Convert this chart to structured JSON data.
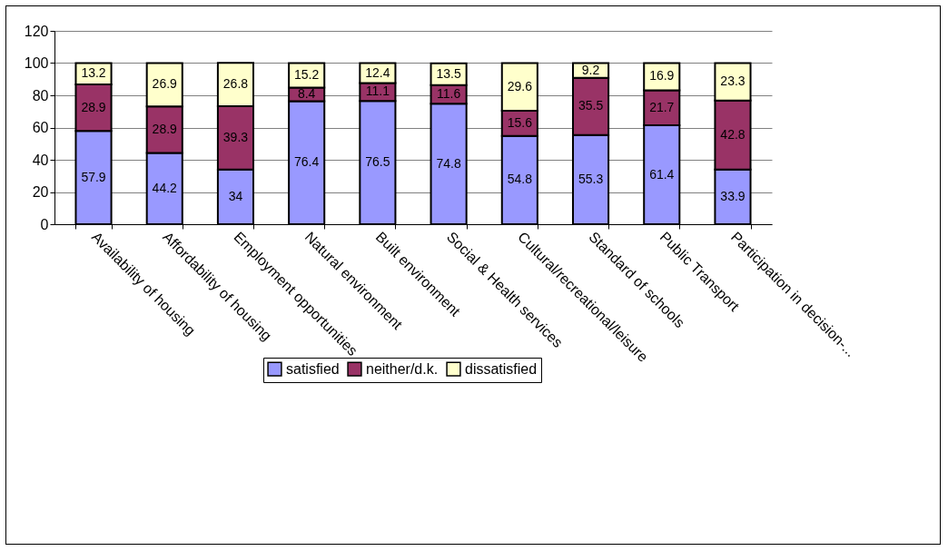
{
  "chart_data": {
    "type": "bar",
    "stacked": true,
    "categories": [
      "Availability of housing",
      "Affordability of housing",
      "Employment opportunities",
      "Natural environment",
      "Built environment",
      "Social & Health services",
      "Cultural/recreational/leisure",
      "Standard of schools",
      "Public Transport",
      "Participation in decision-..."
    ],
    "series": [
      {
        "name": "satisfied",
        "color": "#9999ff",
        "values": [
          57.9,
          44.2,
          34,
          76.4,
          76.5,
          74.8,
          54.8,
          55.3,
          61.4,
          33.9
        ]
      },
      {
        "name": "neither/d.k.",
        "color": "#993366",
        "values": [
          28.9,
          28.9,
          39.3,
          8.4,
          11.1,
          11.6,
          15.6,
          35.5,
          21.7,
          42.8
        ]
      },
      {
        "name": "dissatisfied",
        "color": "#ffffcc",
        "values": [
          13.2,
          26.9,
          26.8,
          15.2,
          12.4,
          13.5,
          29.6,
          9.2,
          16.9,
          23.3
        ]
      }
    ],
    "ylim": [
      0,
      120
    ],
    "yticks": [
      0,
      20,
      40,
      60,
      80,
      100,
      120
    ],
    "grid": "y",
    "legend": "bottom",
    "data_labels": true
  }
}
